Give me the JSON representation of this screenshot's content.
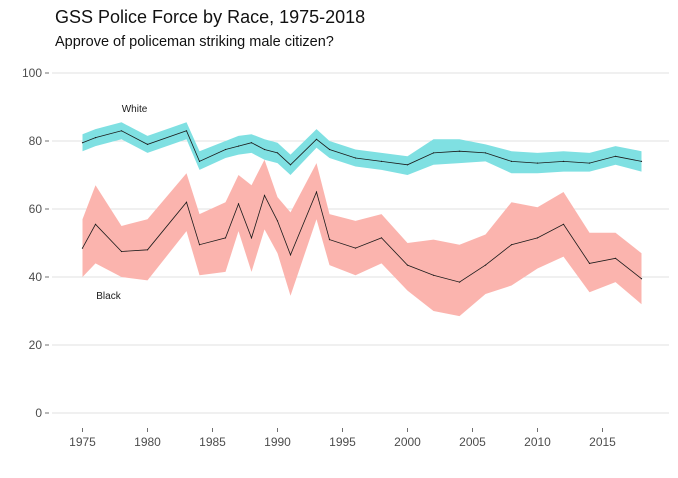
{
  "chart_data": {
    "type": "line",
    "title": "GSS Police Force by Race, 1975-2018",
    "subtitle": "Approve of policeman striking male citizen?",
    "xlim": [
      1975,
      2018
    ],
    "ylim": [
      0,
      100
    ],
    "x_ticks": [
      1975,
      1980,
      1985,
      1990,
      1995,
      2000,
      2005,
      2010,
      2015
    ],
    "y_ticks": [
      0,
      20,
      40,
      60,
      80,
      100
    ],
    "grid": "horizontal",
    "series": [
      {
        "name": "White",
        "color": "#00BFC4",
        "band_color": "#7FE0E2",
        "points": [
          {
            "x": 1975,
            "y": 79.5,
            "lo": 77.0,
            "hi": 82.0
          },
          {
            "x": 1976,
            "y": 81.0,
            "lo": 78.5,
            "hi": 83.5
          },
          {
            "x": 1978,
            "y": 83.0,
            "lo": 80.5,
            "hi": 85.5
          },
          {
            "x": 1980,
            "y": 79.0,
            "lo": 76.5,
            "hi": 81.5
          },
          {
            "x": 1983,
            "y": 83.0,
            "lo": 80.5,
            "hi": 85.5
          },
          {
            "x": 1984,
            "y": 74.0,
            "lo": 71.5,
            "hi": 77.0
          },
          {
            "x": 1986,
            "y": 77.5,
            "lo": 75.0,
            "hi": 80.0
          },
          {
            "x": 1987,
            "y": 78.5,
            "lo": 76.0,
            "hi": 81.5
          },
          {
            "x": 1988,
            "y": 79.5,
            "lo": 76.5,
            "hi": 82.0
          },
          {
            "x": 1989,
            "y": 77.5,
            "lo": 74.5,
            "hi": 80.5
          },
          {
            "x": 1990,
            "y": 76.5,
            "lo": 73.5,
            "hi": 79.5
          },
          {
            "x": 1991,
            "y": 73.0,
            "lo": 70.0,
            "hi": 76.0
          },
          {
            "x": 1993,
            "y": 80.5,
            "lo": 78.0,
            "hi": 83.5
          },
          {
            "x": 1994,
            "y": 77.5,
            "lo": 75.0,
            "hi": 80.0
          },
          {
            "x": 1996,
            "y": 75.0,
            "lo": 72.5,
            "hi": 77.5
          },
          {
            "x": 1998,
            "y": 74.0,
            "lo": 71.5,
            "hi": 76.5
          },
          {
            "x": 2000,
            "y": 73.0,
            "lo": 70.0,
            "hi": 75.5
          },
          {
            "x": 2002,
            "y": 76.5,
            "lo": 73.0,
            "hi": 80.5
          },
          {
            "x": 2004,
            "y": 77.0,
            "lo": 73.5,
            "hi": 80.5
          },
          {
            "x": 2006,
            "y": 76.5,
            "lo": 74.0,
            "hi": 79.0
          },
          {
            "x": 2008,
            "y": 74.0,
            "lo": 70.5,
            "hi": 77.0
          },
          {
            "x": 2010,
            "y": 73.5,
            "lo": 70.5,
            "hi": 76.5
          },
          {
            "x": 2012,
            "y": 74.0,
            "lo": 71.0,
            "hi": 77.0
          },
          {
            "x": 2014,
            "y": 73.5,
            "lo": 71.0,
            "hi": 76.5
          },
          {
            "x": 2016,
            "y": 75.5,
            "lo": 73.0,
            "hi": 78.5
          },
          {
            "x": 2018,
            "y": 74.0,
            "lo": 71.0,
            "hi": 77.0
          }
        ]
      },
      {
        "name": "Black",
        "color": "#F8766D",
        "band_color": "#FBB4AE",
        "points": [
          {
            "x": 1975,
            "y": 48.5,
            "lo": 40.0,
            "hi": 57.0
          },
          {
            "x": 1976,
            "y": 55.5,
            "lo": 44.0,
            "hi": 67.0
          },
          {
            "x": 1978,
            "y": 47.5,
            "lo": 40.0,
            "hi": 55.0
          },
          {
            "x": 1980,
            "y": 48.0,
            "lo": 39.0,
            "hi": 57.0
          },
          {
            "x": 1983,
            "y": 62.0,
            "lo": 53.5,
            "hi": 70.5
          },
          {
            "x": 1984,
            "y": 49.5,
            "lo": 40.5,
            "hi": 58.5
          },
          {
            "x": 1986,
            "y": 51.5,
            "lo": 41.5,
            "hi": 62.0
          },
          {
            "x": 1987,
            "y": 61.5,
            "lo": 53.5,
            "hi": 70.0
          },
          {
            "x": 1988,
            "y": 51.5,
            "lo": 41.5,
            "hi": 67.0
          },
          {
            "x": 1989,
            "y": 64.0,
            "lo": 54.0,
            "hi": 74.5
          },
          {
            "x": 1990,
            "y": 56.5,
            "lo": 47.0,
            "hi": 63.5
          },
          {
            "x": 1991,
            "y": 46.5,
            "lo": 34.5,
            "hi": 59.0
          },
          {
            "x": 1993,
            "y": 65.0,
            "lo": 57.0,
            "hi": 73.5
          },
          {
            "x": 1994,
            "y": 51.0,
            "lo": 43.5,
            "hi": 58.5
          },
          {
            "x": 1996,
            "y": 48.5,
            "lo": 40.5,
            "hi": 56.5
          },
          {
            "x": 1998,
            "y": 51.5,
            "lo": 44.0,
            "hi": 58.5
          },
          {
            "x": 2000,
            "y": 43.5,
            "lo": 36.0,
            "hi": 50.0
          },
          {
            "x": 2002,
            "y": 40.5,
            "lo": 30.0,
            "hi": 51.0
          },
          {
            "x": 2004,
            "y": 38.5,
            "lo": 28.5,
            "hi": 49.5
          },
          {
            "x": 2006,
            "y": 43.5,
            "lo": 35.0,
            "hi": 52.5
          },
          {
            "x": 2008,
            "y": 49.5,
            "lo": 37.5,
            "hi": 62.0
          },
          {
            "x": 2010,
            "y": 51.5,
            "lo": 42.5,
            "hi": 60.5
          },
          {
            "x": 2012,
            "y": 55.5,
            "lo": 46.0,
            "hi": 65.0
          },
          {
            "x": 2014,
            "y": 44.0,
            "lo": 35.5,
            "hi": 53.0
          },
          {
            "x": 2016,
            "y": 45.5,
            "lo": 38.5,
            "hi": 53.0
          },
          {
            "x": 2018,
            "y": 39.5,
            "lo": 32.0,
            "hi": 47.0
          }
        ]
      }
    ],
    "annotations": [
      {
        "text": "White",
        "x": 1979,
        "y": 89.5
      },
      {
        "text": "Black",
        "x": 1977,
        "y": 34.5
      }
    ]
  }
}
